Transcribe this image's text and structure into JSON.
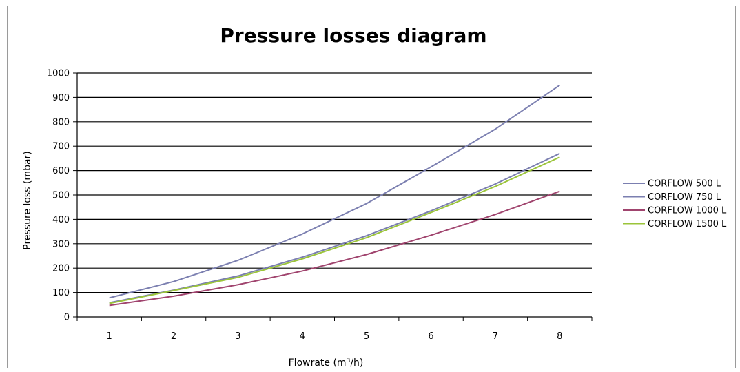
{
  "chart_data": {
    "type": "line",
    "title": "Pressure losses diagram",
    "xlabel_prefix": "Flowrate (m",
    "xlabel_superscript": "3",
    "xlabel_suffix": "/h)",
    "ylabel": "Pressure loss (mbar)",
    "categories": [
      "1",
      "2",
      "3",
      "4",
      "5",
      "6",
      "7",
      "8"
    ],
    "ylim": [
      0,
      1000
    ],
    "yticks": [
      "0",
      "100",
      "200",
      "300",
      "400",
      "500",
      "600",
      "700",
      "800",
      "900",
      "1000"
    ],
    "grid": "horizontal",
    "legend_position": "right",
    "series": [
      {
        "name": "CORFLOW 500 L",
        "color": "#7b7fb0",
        "values": [
          78,
          145,
          232,
          340,
          465,
          615,
          770,
          950
        ]
      },
      {
        "name": "CORFLOW 750 L",
        "color": "#7b7fb0",
        "values": [
          58,
          110,
          168,
          245,
          333,
          435,
          545,
          670
        ]
      },
      {
        "name": "CORFLOW 1000 L",
        "color": "#a0446e",
        "values": [
          47,
          85,
          132,
          188,
          256,
          335,
          420,
          515
        ]
      },
      {
        "name": "CORFLOW 1500 L",
        "color": "#9bc43a",
        "values": [
          55,
          108,
          162,
          238,
          325,
          428,
          535,
          655
        ]
      }
    ]
  }
}
